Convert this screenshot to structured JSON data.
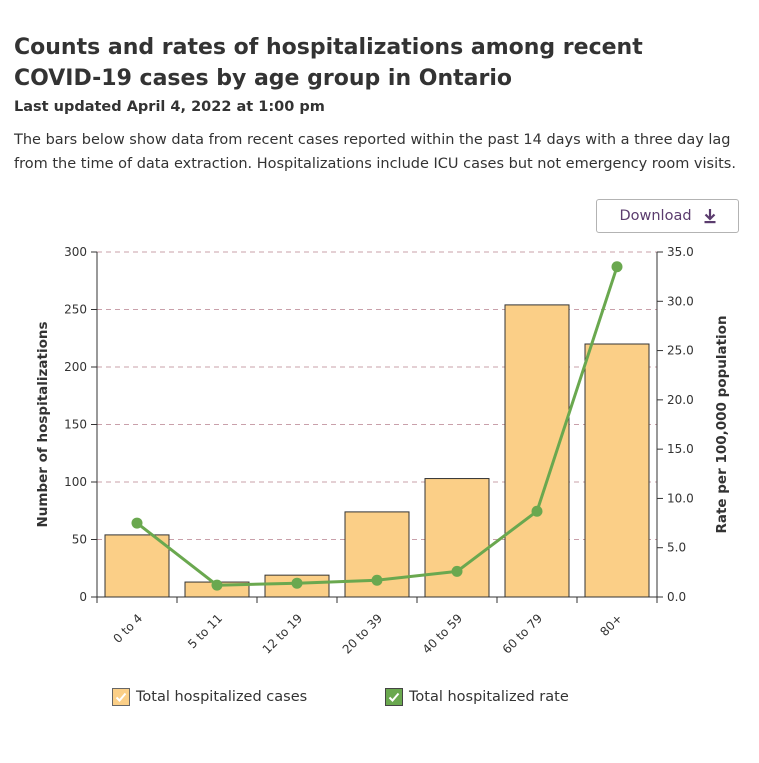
{
  "header": {
    "title": "Counts and rates of hospitalizations among recent COVID-19 cases by age group in Ontario",
    "updated": "Last updated April 4, 2022 at 1:00 pm",
    "description": "The bars below show data from recent cases reported within the past 14 days with a three day lag from the time of data extraction. Hospitalizations include ICU cases but not emergency room visits."
  },
  "toolbar": {
    "download_label": "Download",
    "download_icon": "download-arrow-icon"
  },
  "colors": {
    "bar_fill": "#fbcf87",
    "bar_stroke": "#333333",
    "line": "#6aa84f",
    "grid": "#c9a0aa",
    "text": "#333333",
    "accent": "#5b3c6e"
  },
  "chart_data": {
    "type": "bar",
    "categories": [
      "0 to 4",
      "5 to 11",
      "12 to 19",
      "20 to 39",
      "40 to 59",
      "60 to 79",
      "80+"
    ],
    "series": [
      {
        "name": "Total hospitalized cases",
        "type": "bar",
        "axis": "left",
        "values": [
          54,
          13,
          19,
          74,
          103,
          254,
          220
        ]
      },
      {
        "name": "Total hospitalized rate",
        "type": "line",
        "axis": "right",
        "values": [
          7.5,
          1.2,
          1.4,
          1.7,
          2.6,
          8.7,
          33.5
        ]
      }
    ],
    "ylabel": "Number of hospitalizations",
    "y2label": "Rate per 100,000 population",
    "ylim": [
      0,
      300
    ],
    "y2lim": [
      0,
      35
    ],
    "yticks": [
      "0",
      "50",
      "100",
      "150",
      "200",
      "250",
      "300"
    ],
    "y2ticks": [
      "0.0",
      "5.0",
      "10.0",
      "15.0",
      "20.0",
      "25.0",
      "30.0",
      "35.0"
    ],
    "grid": true,
    "legend_position": "bottom"
  },
  "legend": {
    "bars_label": "Total hospitalized cases",
    "line_label": "Total hospitalized rate"
  }
}
